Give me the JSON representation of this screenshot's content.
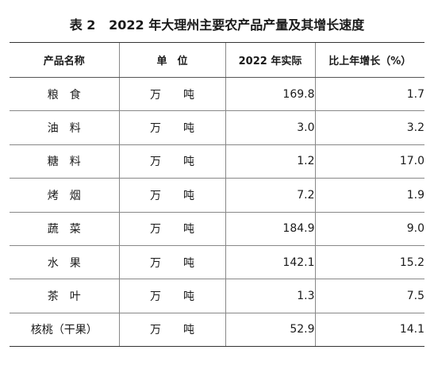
{
  "title": "表 2   2022 年大理州主要农产品产量及其增长速度",
  "headers": {
    "name": "产品名称",
    "unit": "单　位",
    "actual": "2022 年实际",
    "growth": "比上年增长（%）"
  },
  "rows": [
    {
      "name": "粮　食",
      "unit": "万　　吨",
      "actual": "169.8",
      "growth": "1.7"
    },
    {
      "name": "油　料",
      "unit": "万　　吨",
      "actual": "3.0",
      "growth": "3.2"
    },
    {
      "name": "糖　料",
      "unit": "万　　吨",
      "actual": "1.2",
      "growth": "17.0"
    },
    {
      "name": "烤　烟",
      "unit": "万　　吨",
      "actual": "7.2",
      "growth": "1.9"
    },
    {
      "name": "蔬　菜",
      "unit": "万　　吨",
      "actual": "184.9",
      "growth": "9.0"
    },
    {
      "name": "水　果",
      "unit": "万　　吨",
      "actual": "142.1",
      "growth": "15.2"
    },
    {
      "name": "茶　叶",
      "unit": "万　　吨",
      "actual": "1.3",
      "growth": "7.5"
    },
    {
      "name": "核桃（干果）",
      "unit": "万　　吨",
      "actual": "52.9",
      "growth": "14.1"
    }
  ]
}
